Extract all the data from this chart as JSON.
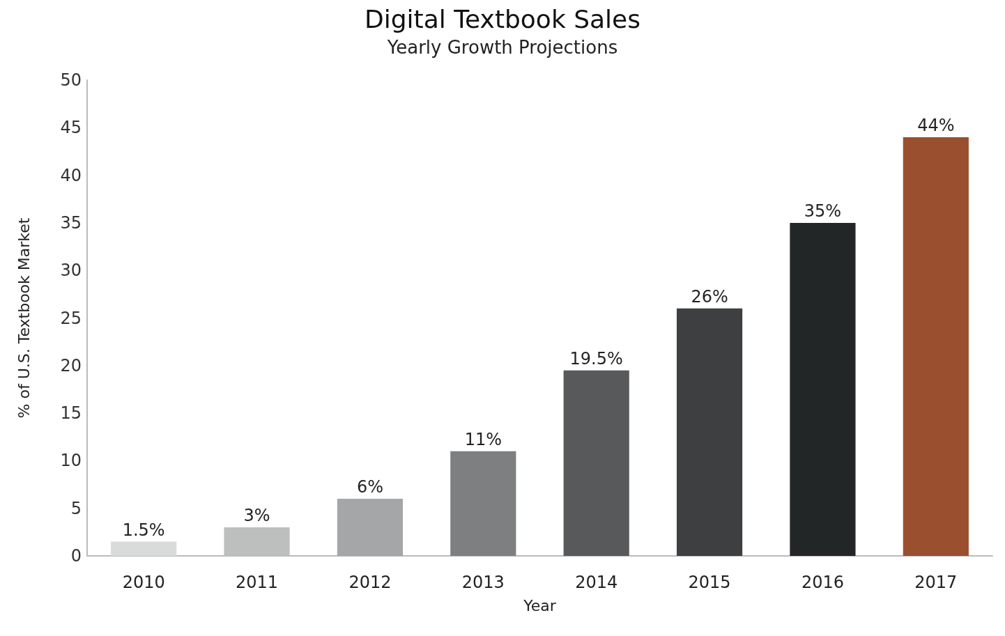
{
  "chart_data": {
    "type": "bar",
    "title": "Digital Textbook Sales",
    "subtitle": "Yearly Growth Projections",
    "xlabel": "Year",
    "ylabel": "% of U.S. Textbook Market",
    "categories": [
      "2010",
      "2011",
      "2012",
      "2013",
      "2014",
      "2015",
      "2016",
      "2017"
    ],
    "values": [
      1.5,
      3,
      6,
      11,
      19.5,
      26,
      35,
      44
    ],
    "colors": [
      "#d9dada",
      "#bdbebe",
      "#a5a6a7",
      "#7d7f80",
      "#58595b",
      "#3e3f41",
      "#232627",
      "#9a4f2e"
    ],
    "value_labels": [
      "1.5%",
      "3%",
      "6%",
      "11%",
      "19.5%",
      "26%",
      "35%",
      "44%"
    ],
    "ylim": [
      0,
      50
    ],
    "yticks": [
      0,
      5,
      10,
      15,
      20,
      25,
      30,
      35,
      40,
      45,
      50
    ],
    "grid": false
  }
}
